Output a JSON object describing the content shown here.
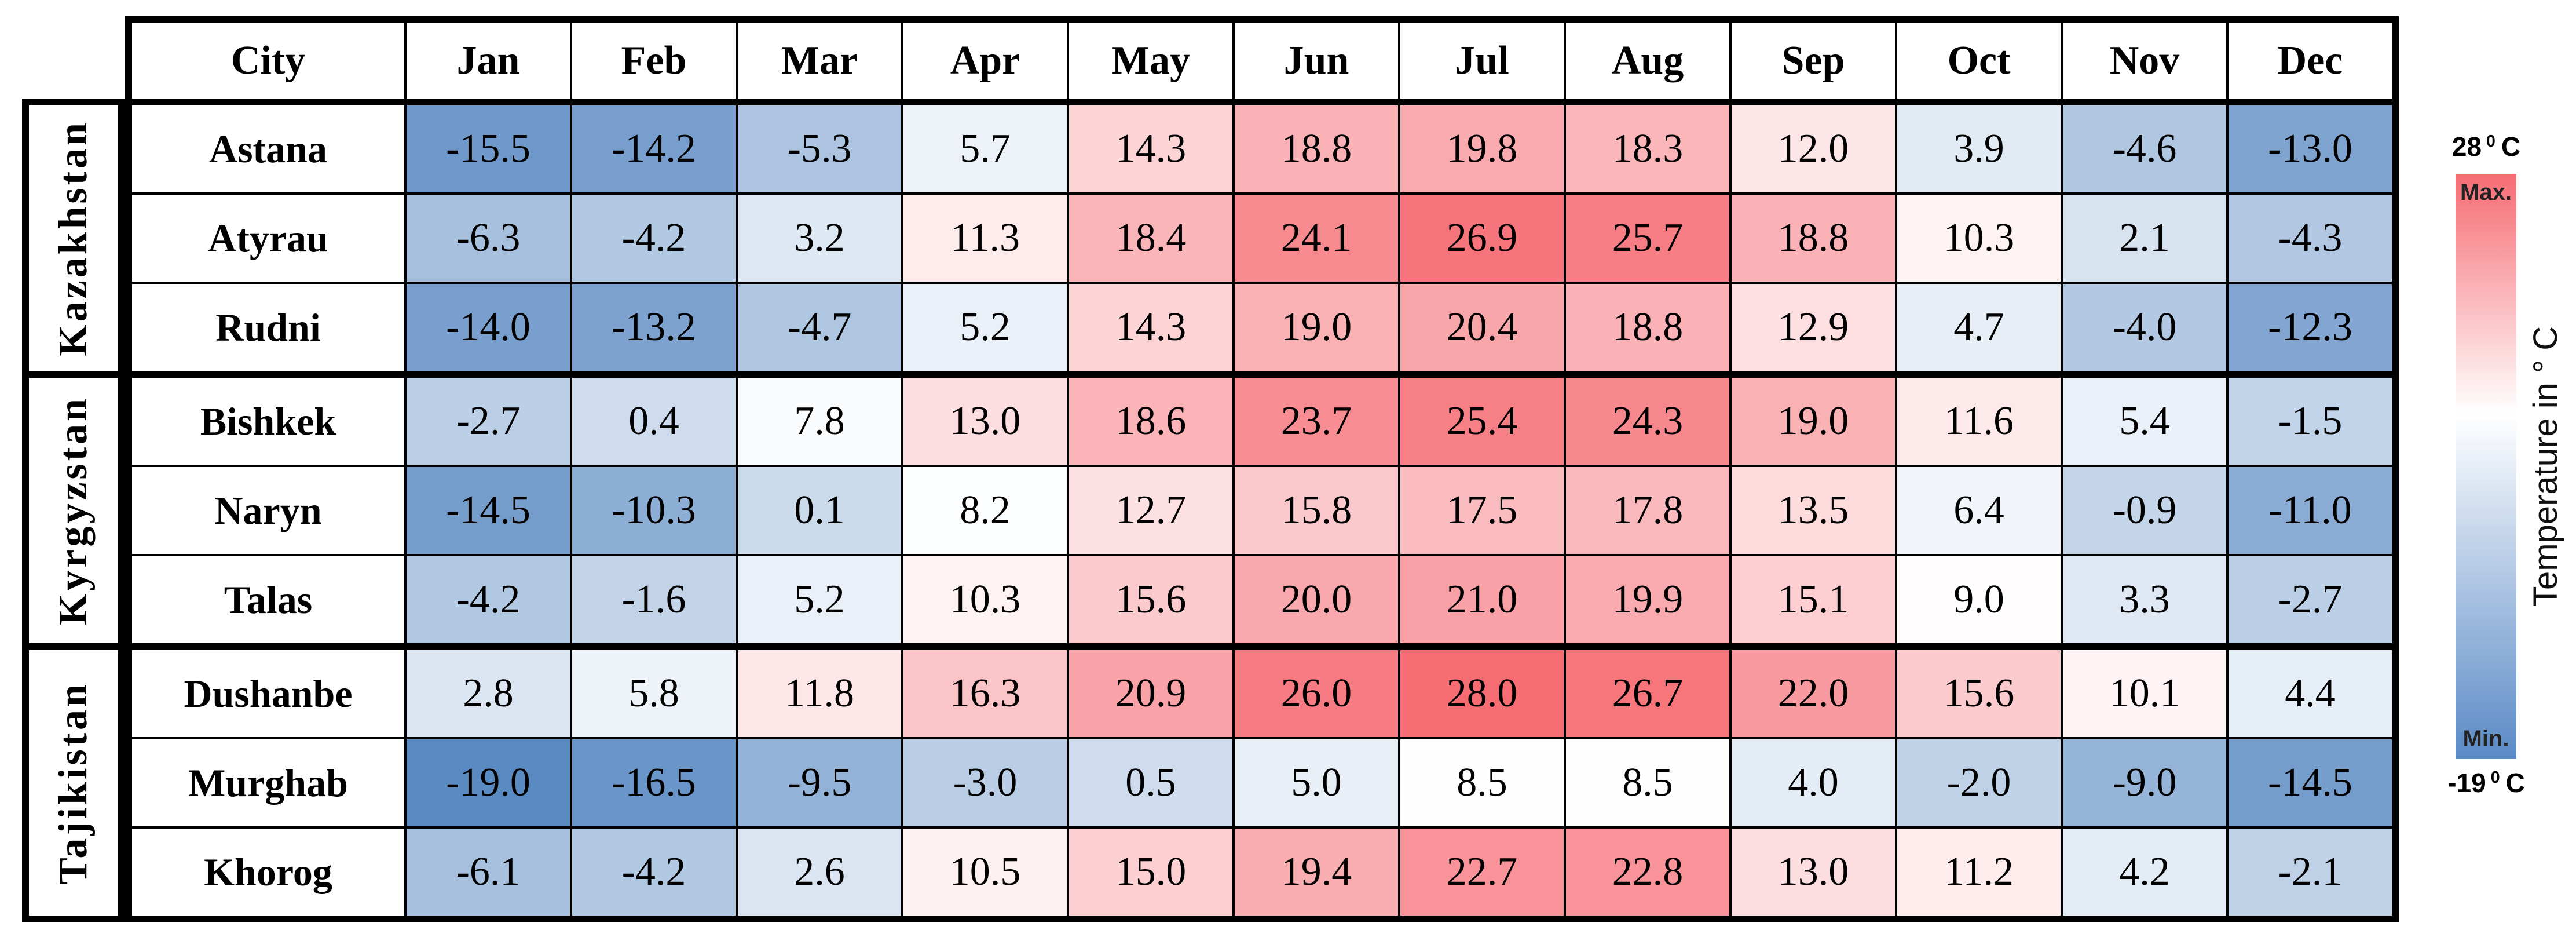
{
  "legend": {
    "max_value": "28",
    "max_degree": "0",
    "max_unit": "C",
    "min_value": "-19",
    "min_degree": "0",
    "min_unit": "C",
    "max_caption": "Max.",
    "min_caption": "Min.",
    "axis_title": "Temperature in ° C"
  },
  "chart_data": {
    "type": "heatmap",
    "row_header": "City",
    "columns": [
      "Jan",
      "Feb",
      "Mar",
      "Apr",
      "May",
      "Jun",
      "Jul",
      "Aug",
      "Sep",
      "Oct",
      "Nov",
      "Dec"
    ],
    "value_unit": "°C",
    "groups": [
      {
        "country": "Kazakhstan",
        "rows": [
          {
            "city": "Astana",
            "values": [
              -15.5,
              -14.2,
              -5.3,
              5.7,
              14.3,
              18.8,
              19.8,
              18.3,
              12.0,
              3.9,
              -4.6,
              -13.0
            ]
          },
          {
            "city": "Atyrau",
            "values": [
              -6.3,
              -4.2,
              3.2,
              11.3,
              18.4,
              24.1,
              26.9,
              25.7,
              18.8,
              10.3,
              2.1,
              -4.3
            ]
          },
          {
            "city": "Rudni",
            "values": [
              -14.0,
              -13.2,
              -4.7,
              5.2,
              14.3,
              19.0,
              20.4,
              18.8,
              12.9,
              4.7,
              -4.0,
              -12.3
            ]
          }
        ]
      },
      {
        "country": "Kyrgyzstan",
        "rows": [
          {
            "city": "Bishkek",
            "values": [
              -2.7,
              0.4,
              7.8,
              13.0,
              18.6,
              23.7,
              25.4,
              24.3,
              19.0,
              11.6,
              5.4,
              -1.5
            ]
          },
          {
            "city": "Naryn",
            "values": [
              -14.5,
              -10.3,
              0.1,
              8.2,
              12.7,
              15.8,
              17.5,
              17.8,
              13.5,
              6.4,
              -0.9,
              -11.0
            ]
          },
          {
            "city": "Talas",
            "values": [
              -4.2,
              -1.6,
              5.2,
              10.3,
              15.6,
              20.0,
              21.0,
              19.9,
              15.1,
              9.0,
              3.3,
              -2.7
            ]
          }
        ]
      },
      {
        "country": "Tajikistan",
        "rows": [
          {
            "city": "Dushanbe",
            "values": [
              2.8,
              5.8,
              11.8,
              16.3,
              20.9,
              26.0,
              28.0,
              26.7,
              22.0,
              15.6,
              10.1,
              4.4
            ]
          },
          {
            "city": "Murghab",
            "values": [
              -19.0,
              -16.5,
              -9.5,
              -3.0,
              0.5,
              5.0,
              8.5,
              8.5,
              4.0,
              -2.0,
              -9.0,
              -14.5
            ]
          },
          {
            "city": "Khorog",
            "values": [
              -6.1,
              -4.2,
              2.6,
              10.5,
              15.0,
              19.4,
              22.7,
              22.8,
              13.0,
              11.2,
              4.2,
              -2.1
            ]
          }
        ]
      }
    ],
    "colorbar": {
      "min": -19,
      "max": 28,
      "midpoint": 8.7,
      "min_color": "#5a8ac2",
      "mid_color": "#ffffff",
      "max_color": "#f56c73",
      "min_label": "-19 °C",
      "max_label": "28 °C",
      "title": "Temperature in ° C",
      "orientation": "vertical",
      "position": "right"
    }
  }
}
